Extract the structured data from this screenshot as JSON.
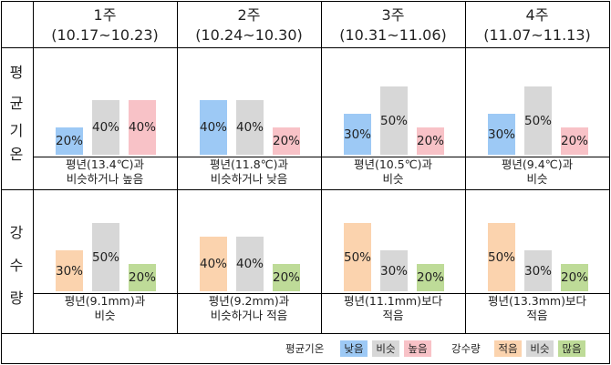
{
  "weeks": [
    {
      "label": "1주",
      "range": "(10.17~10.23)"
    },
    {
      "label": "2주",
      "range": "(10.24~10.30)"
    },
    {
      "label": "3주",
      "range": "(10.31~11.06)"
    },
    {
      "label": "4주",
      "range": "(11.07~11.13)"
    }
  ],
  "rows": [
    {
      "label_chars": [
        "평",
        "균",
        "기",
        "온"
      ]
    },
    {
      "label_chars": [
        "강",
        "수",
        "량"
      ]
    }
  ],
  "chart_data": [
    {
      "type": "bar",
      "row": "평균기온",
      "categories": [
        "낮음",
        "비슷",
        "높음"
      ],
      "colors": [
        "#9dc9f5",
        "#d7d7d7",
        "#f8c2c7"
      ],
      "ylim": [
        0,
        60
      ],
      "weeks": [
        {
          "values": [
            20,
            40,
            40
          ],
          "labels": [
            "20%",
            "40%",
            "40%"
          ],
          "caption": [
            "평년(13.4℃)과",
            "비슷하거나 높음"
          ]
        },
        {
          "values": [
            40,
            40,
            20
          ],
          "labels": [
            "40%",
            "40%",
            "20%"
          ],
          "caption": [
            "평년(11.8℃)과",
            "비슷하거나 낮음"
          ]
        },
        {
          "values": [
            30,
            50,
            20
          ],
          "labels": [
            "30%",
            "50%",
            "20%"
          ],
          "caption": [
            "평년(10.5℃)과",
            "비슷"
          ]
        },
        {
          "values": [
            30,
            50,
            20
          ],
          "labels": [
            "30%",
            "50%",
            "20%"
          ],
          "caption": [
            "평년(9.4℃)과",
            "비슷"
          ]
        }
      ]
    },
    {
      "type": "bar",
      "row": "강수량",
      "categories": [
        "적음",
        "비슷",
        "많음"
      ],
      "colors": [
        "#fbd3ae",
        "#d7d7d7",
        "#bedb98"
      ],
      "ylim": [
        0,
        60
      ],
      "weeks": [
        {
          "values": [
            30,
            50,
            20
          ],
          "labels": [
            "30%",
            "50%",
            "20%"
          ],
          "caption": [
            "평년(9.1mm)과",
            "비슷"
          ]
        },
        {
          "values": [
            40,
            40,
            20
          ],
          "labels": [
            "40%",
            "40%",
            "20%"
          ],
          "caption": [
            "평년(9.2mm)과",
            "비슷하거나 적음"
          ]
        },
        {
          "values": [
            50,
            30,
            20
          ],
          "labels": [
            "50%",
            "30%",
            "20%"
          ],
          "caption": [
            "평년(11.1mm)보다",
            "적음"
          ]
        },
        {
          "values": [
            50,
            30,
            20
          ],
          "labels": [
            "50%",
            "30%",
            "20%"
          ],
          "caption": [
            "평년(13.3mm)보다",
            "적음"
          ]
        }
      ]
    }
  ],
  "legend": {
    "temp_title": "평균기온",
    "temp_items": [
      {
        "label": "낮음",
        "color": "#9dc9f5"
      },
      {
        "label": "비슷",
        "color": "#d7d7d7"
      },
      {
        "label": "높음",
        "color": "#f8c2c7"
      }
    ],
    "rain_title": "강수량",
    "rain_items": [
      {
        "label": "적음",
        "color": "#fbd3ae"
      },
      {
        "label": "비슷",
        "color": "#d7d7d7"
      },
      {
        "label": "많음",
        "color": "#bedb98"
      }
    ]
  }
}
